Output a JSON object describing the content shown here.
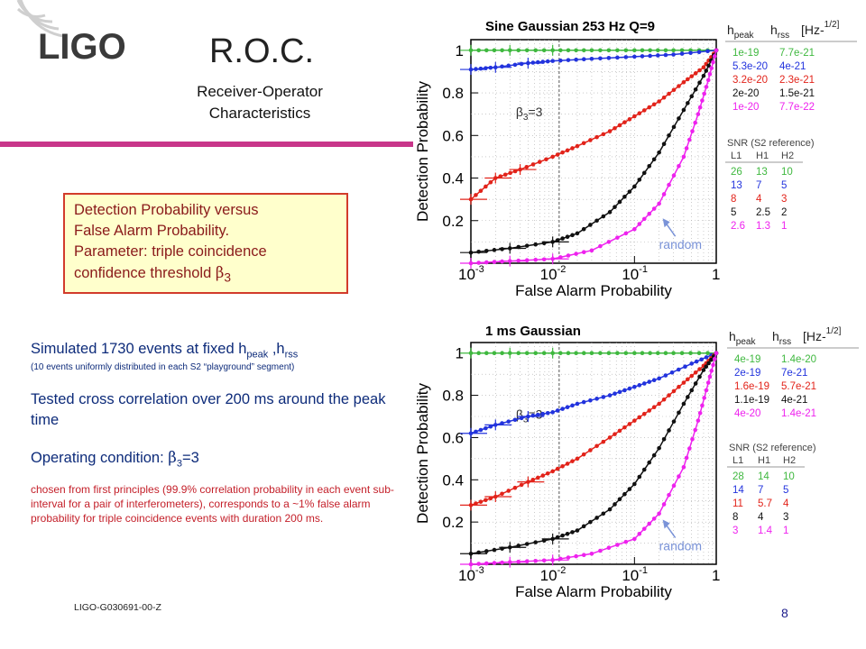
{
  "header": {
    "logo_text": "LIGO",
    "title": "R.O.C.",
    "subtitle_line1": "Receiver-Operator",
    "subtitle_line2": "Characteristics"
  },
  "description_box": {
    "line1": "Detection Probability versus",
    "line2": "False Alarm Probability.",
    "line3": "Parameter: triple coincidence",
    "line4_prefix": "confidence threshold ",
    "beta_symbol": "β",
    "beta_sub": "3"
  },
  "body": {
    "sim_prefix": "Simulated 1730  events  at fixed h",
    "sim_sub_peak": "peak",
    "sim_mid": " ,h",
    "sim_sub_rss": "rss",
    "sim_note": "(10 events uniformly distributed in each S2 “playground” segment)",
    "tested": "Tested cross correlation over  200 ms around the peak time",
    "opcond_prefix": "Operating condition: ",
    "opcond_beta": "β",
    "opcond_sub": "3",
    "opcond_suffix": "=3",
    "chosen": "chosen from first principles (99.9% correlation probability in each event sub-interval for a pair of interferometers), corresponds to a ~1% false alarm probability for triple coincidence events with duration 200 ms."
  },
  "footer": {
    "doc_id": "LIGO-G030691-00-Z",
    "page_number": "8"
  },
  "colors": {
    "accent": "#c8368a",
    "box_bg": "#ffffcc",
    "box_border": "#d23b2b",
    "text_blue": "#0d2b7a",
    "green": "#3fb83f",
    "blue": "#2233dd",
    "red": "#e2231a",
    "black": "#111111",
    "magenta": "#ee22ee"
  },
  "chart_data": [
    {
      "type": "line",
      "title": "Sine Gaussian 253 Hz Q=9",
      "xlabel": "False Alarm Probability",
      "ylabel": "Detection Probability",
      "xscale": "log",
      "xlim": [
        0.001,
        1
      ],
      "ylim": [
        0,
        1.05
      ],
      "x_ticklabels": [
        "10-3",
        "10-2",
        "10-1",
        "1"
      ],
      "y_ticklabels": [
        "0.2",
        "0.4",
        "0.6",
        "0.8",
        "1"
      ],
      "annotation_threshold": "β3=3",
      "threshold_x": 0.012,
      "annotation_random": "random",
      "legend_header": {
        "h_peak": "peak",
        "h_rss": "rss",
        "units": "[Hz-1/2]"
      },
      "legend_rows": [
        {
          "hpeak": "1e-19",
          "hrss": "7.7e-21",
          "color": "#3fb83f"
        },
        {
          "hpeak": "5.3e-20",
          "hrss": "4e-21",
          "color": "#2233dd"
        },
        {
          "hpeak": "3.2e-20",
          "hrss": "2.3e-21",
          "color": "#e2231a"
        },
        {
          "hpeak": "2e-20",
          "hrss": "1.5e-21",
          "color": "#111111"
        },
        {
          "hpeak": "1e-20",
          "hrss": "7.7e-22",
          "color": "#ee22ee"
        }
      ],
      "snr_title": "SNR (S2 reference)",
      "snr_header": [
        "L1",
        "H1",
        "H2"
      ],
      "snr_rows": [
        [
          "26",
          "13",
          "10"
        ],
        [
          "13",
          "7",
          "5"
        ],
        [
          "8",
          "4",
          "3"
        ],
        [
          "5",
          "2.5",
          "2"
        ],
        [
          "2.6",
          "1.3",
          "1"
        ]
      ],
      "series": [
        {
          "color": "#3fb83f",
          "x": [
            0.001,
            0.003,
            0.01,
            0.03,
            0.1,
            0.3,
            1
          ],
          "y": [
            1.0,
            1.0,
            1.0,
            1.0,
            1.0,
            1.0,
            1.0
          ]
        },
        {
          "color": "#2233dd",
          "x": [
            0.001,
            0.002,
            0.005,
            0.01,
            0.03,
            0.1,
            0.3,
            1
          ],
          "y": [
            0.91,
            0.92,
            0.94,
            0.95,
            0.96,
            0.97,
            0.98,
            1.0
          ]
        },
        {
          "color": "#e2231a",
          "x": [
            0.001,
            0.002,
            0.004,
            0.01,
            0.02,
            0.05,
            0.1,
            0.2,
            0.4,
            0.7,
            1
          ],
          "y": [
            0.3,
            0.4,
            0.44,
            0.5,
            0.55,
            0.62,
            0.69,
            0.76,
            0.85,
            0.92,
            1.0
          ]
        },
        {
          "color": "#111111",
          "x": [
            0.001,
            0.003,
            0.01,
            0.02,
            0.05,
            0.1,
            0.2,
            0.4,
            0.7,
            1
          ],
          "y": [
            0.05,
            0.07,
            0.1,
            0.14,
            0.24,
            0.36,
            0.52,
            0.72,
            0.88,
            1.0
          ]
        },
        {
          "color": "#ee22ee",
          "x": [
            0.001,
            0.003,
            0.01,
            0.03,
            0.1,
            0.2,
            0.4,
            0.6,
            0.8,
            1
          ],
          "y": [
            0.0,
            0.01,
            0.02,
            0.06,
            0.16,
            0.28,
            0.5,
            0.7,
            0.86,
            1.0
          ]
        }
      ]
    },
    {
      "type": "line",
      "title": "1 ms Gaussian",
      "xlabel": "False Alarm Probability",
      "ylabel": "Detection Probability",
      "xscale": "log",
      "xlim": [
        0.001,
        1
      ],
      "ylim": [
        0,
        1.05
      ],
      "x_ticklabels": [
        "10-3",
        "10-2",
        "10-1",
        "1"
      ],
      "y_ticklabels": [
        "0.2",
        "0.4",
        "0.6",
        "0.8",
        "1"
      ],
      "annotation_threshold": "β3=3",
      "threshold_x": 0.012,
      "annotation_random": "random",
      "legend_header": {
        "h_peak": "peak",
        "h_rss": "rss",
        "units": "[Hz-1/2]"
      },
      "legend_rows": [
        {
          "hpeak": "4e-19",
          "hrss": "1.4e-20",
          "color": "#3fb83f"
        },
        {
          "hpeak": "2e-19",
          "hrss": "7e-21",
          "color": "#2233dd"
        },
        {
          "hpeak": "1.6e-19",
          "hrss": "5.7e-21",
          "color": "#e2231a"
        },
        {
          "hpeak": "1.1e-19",
          "hrss": "4e-21",
          "color": "#111111"
        },
        {
          "hpeak": "4e-20",
          "hrss": "1.4e-21",
          "color": "#ee22ee"
        }
      ],
      "snr_title": "SNR (S2 reference)",
      "snr_header": [
        "L1",
        "H1",
        "H2"
      ],
      "snr_rows": [
        [
          "28",
          "14",
          "10"
        ],
        [
          "14",
          "7",
          "5"
        ],
        [
          "11",
          "5.7",
          "4"
        ],
        [
          "8",
          "4",
          "3"
        ],
        [
          "3",
          "1.4",
          "1"
        ]
      ],
      "series": [
        {
          "color": "#3fb83f",
          "x": [
            0.001,
            0.003,
            0.01,
            0.03,
            0.1,
            0.3,
            1
          ],
          "y": [
            1.0,
            1.0,
            1.0,
            1.0,
            1.0,
            1.0,
            1.0
          ]
        },
        {
          "color": "#2233dd",
          "x": [
            0.001,
            0.002,
            0.005,
            0.01,
            0.02,
            0.05,
            0.1,
            0.2,
            0.5,
            1
          ],
          "y": [
            0.62,
            0.66,
            0.7,
            0.72,
            0.76,
            0.8,
            0.84,
            0.88,
            0.95,
            1.0
          ]
        },
        {
          "color": "#e2231a",
          "x": [
            0.001,
            0.002,
            0.005,
            0.01,
            0.02,
            0.05,
            0.1,
            0.2,
            0.4,
            0.7,
            1
          ],
          "y": [
            0.28,
            0.32,
            0.39,
            0.44,
            0.5,
            0.6,
            0.68,
            0.76,
            0.86,
            0.94,
            1.0
          ]
        },
        {
          "color": "#111111",
          "x": [
            0.001,
            0.003,
            0.01,
            0.02,
            0.05,
            0.1,
            0.2,
            0.4,
            0.7,
            1
          ],
          "y": [
            0.05,
            0.08,
            0.12,
            0.16,
            0.26,
            0.38,
            0.55,
            0.76,
            0.92,
            1.0
          ]
        },
        {
          "color": "#ee22ee",
          "x": [
            0.001,
            0.003,
            0.01,
            0.03,
            0.1,
            0.2,
            0.4,
            0.6,
            0.8,
            1
          ],
          "y": [
            0.0,
            0.01,
            0.02,
            0.05,
            0.12,
            0.24,
            0.46,
            0.68,
            0.86,
            1.0
          ]
        }
      ]
    }
  ]
}
